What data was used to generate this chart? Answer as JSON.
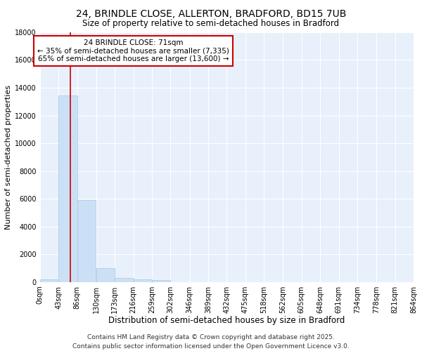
{
  "title_line1": "24, BRINDLE CLOSE, ALLERTON, BRADFORD, BD15 7UB",
  "title_line2": "Size of property relative to semi-detached houses in Bradford",
  "xlabel": "Distribution of semi-detached houses by size in Bradford",
  "ylabel": "Number of semi-detached properties",
  "bar_color": "#cce0f5",
  "bar_edge_color": "#a8c8ea",
  "background_color": "#e8f0fb",
  "grid_color": "#ffffff",
  "bin_edges": [
    0,
    43,
    86,
    130,
    173,
    216,
    259,
    302,
    346,
    389,
    432,
    475,
    518,
    562,
    605,
    648,
    691,
    734,
    778,
    821,
    864
  ],
  "bin_labels": [
    "0sqm",
    "43sqm",
    "86sqm",
    "130sqm",
    "173sqm",
    "216sqm",
    "259sqm",
    "302sqm",
    "346sqm",
    "389sqm",
    "432sqm",
    "475sqm",
    "518sqm",
    "562sqm",
    "605sqm",
    "648sqm",
    "691sqm",
    "734sqm",
    "778sqm",
    "821sqm",
    "864sqm"
  ],
  "bar_heights": [
    200,
    13450,
    5900,
    1000,
    300,
    200,
    110,
    0,
    0,
    0,
    0,
    0,
    0,
    0,
    0,
    0,
    0,
    0,
    0,
    0
  ],
  "property_size": 71,
  "property_label": "24 BRINDLE CLOSE: 71sqm",
  "pct_smaller": 35,
  "pct_larger": 65,
  "n_smaller": 7335,
  "n_larger": 13600,
  "vline_color": "#cc0000",
  "annotation_box_color": "#cc0000",
  "ylim": [
    0,
    18000
  ],
  "yticks": [
    0,
    2000,
    4000,
    6000,
    8000,
    10000,
    12000,
    14000,
    16000,
    18000
  ],
  "footer_line1": "Contains HM Land Registry data © Crown copyright and database right 2025.",
  "footer_line2": "Contains public sector information licensed under the Open Government Licence v3.0.",
  "title_fontsize": 10,
  "subtitle_fontsize": 8.5,
  "xlabel_fontsize": 8.5,
  "ylabel_fontsize": 8,
  "tick_fontsize": 7,
  "footer_fontsize": 6.5,
  "ann_fontsize": 7.5
}
